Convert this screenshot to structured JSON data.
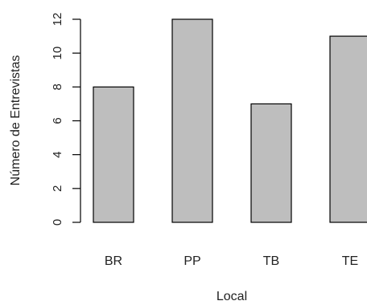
{
  "chart_data": {
    "type": "bar",
    "categories": [
      "BR",
      "PP",
      "TB",
      "TE"
    ],
    "values": [
      8,
      12,
      7,
      11
    ],
    "xlabel": "Local",
    "ylabel": "Número de Entrevistas",
    "ylim": [
      0,
      12
    ],
    "yticks": [
      0,
      2,
      4,
      6,
      8,
      10,
      12
    ],
    "grid": false,
    "bar_color": "#bebebe",
    "bar_border_color": "#000000"
  }
}
